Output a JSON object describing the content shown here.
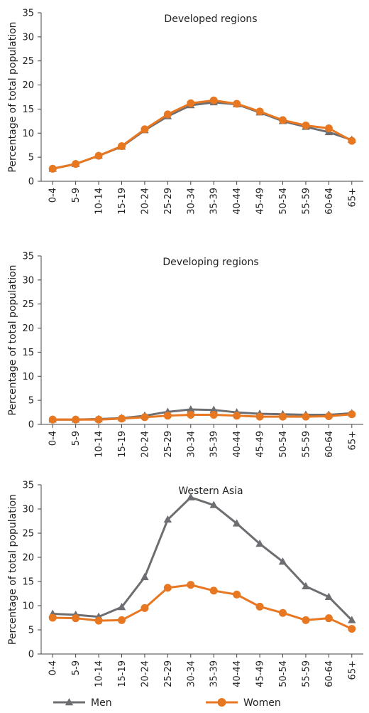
{
  "chart_data": {
    "type": "line",
    "categories": [
      "0-4",
      "5-9",
      "10-14",
      "15-19",
      "20-24",
      "25-29",
      "30-34",
      "35-39",
      "40-44",
      "45-49",
      "50-54",
      "55-59",
      "60-64",
      "65+"
    ],
    "ylabel": "Percentage of total population",
    "ylim": [
      0,
      35
    ],
    "yticks": [
      0,
      5,
      10,
      15,
      20,
      25,
      30,
      35
    ],
    "grid": false,
    "legend": [
      {
        "name": "Men",
        "color": "#6d6e71",
        "marker": "triangle"
      },
      {
        "name": "Women",
        "color": "#e87722",
        "marker": "circle"
      }
    ],
    "panels": [
      {
        "title": "Developed regions",
        "series": [
          {
            "name": "Men",
            "values": [
              2.6,
              3.6,
              5.3,
              7.2,
              10.6,
              13.5,
              15.8,
              16.4,
              16.0,
              14.3,
              12.5,
              11.3,
              10.2,
              8.6
            ]
          },
          {
            "name": "Women",
            "values": [
              2.6,
              3.6,
              5.3,
              7.3,
              10.8,
              13.9,
              16.2,
              16.8,
              16.1,
              14.5,
              12.7,
              11.6,
              11.0,
              8.4
            ]
          }
        ]
      },
      {
        "title": "Developing regions",
        "series": [
          {
            "name": "Men",
            "values": [
              1.0,
              1.0,
              1.1,
              1.3,
              1.8,
              2.6,
              3.1,
              3.0,
              2.5,
              2.2,
              2.1,
              2.0,
              2.0,
              2.3
            ]
          },
          {
            "name": "Women",
            "values": [
              1.0,
              1.0,
              1.0,
              1.2,
              1.5,
              1.8,
              2.0,
              2.0,
              1.8,
              1.6,
              1.6,
              1.6,
              1.7,
              2.1
            ]
          }
        ]
      },
      {
        "title": "Western Asia",
        "series": [
          {
            "name": "Men",
            "values": [
              8.3,
              8.1,
              7.7,
              9.7,
              15.9,
              27.8,
              32.4,
              30.8,
              27.0,
              22.8,
              19.1,
              14.0,
              11.8,
              7.0
            ]
          },
          {
            "name": "Women",
            "values": [
              7.5,
              7.4,
              6.9,
              7.0,
              9.5,
              13.7,
              14.3,
              13.1,
              12.3,
              9.8,
              8.5,
              7.0,
              7.4,
              5.2
            ]
          }
        ]
      }
    ]
  }
}
